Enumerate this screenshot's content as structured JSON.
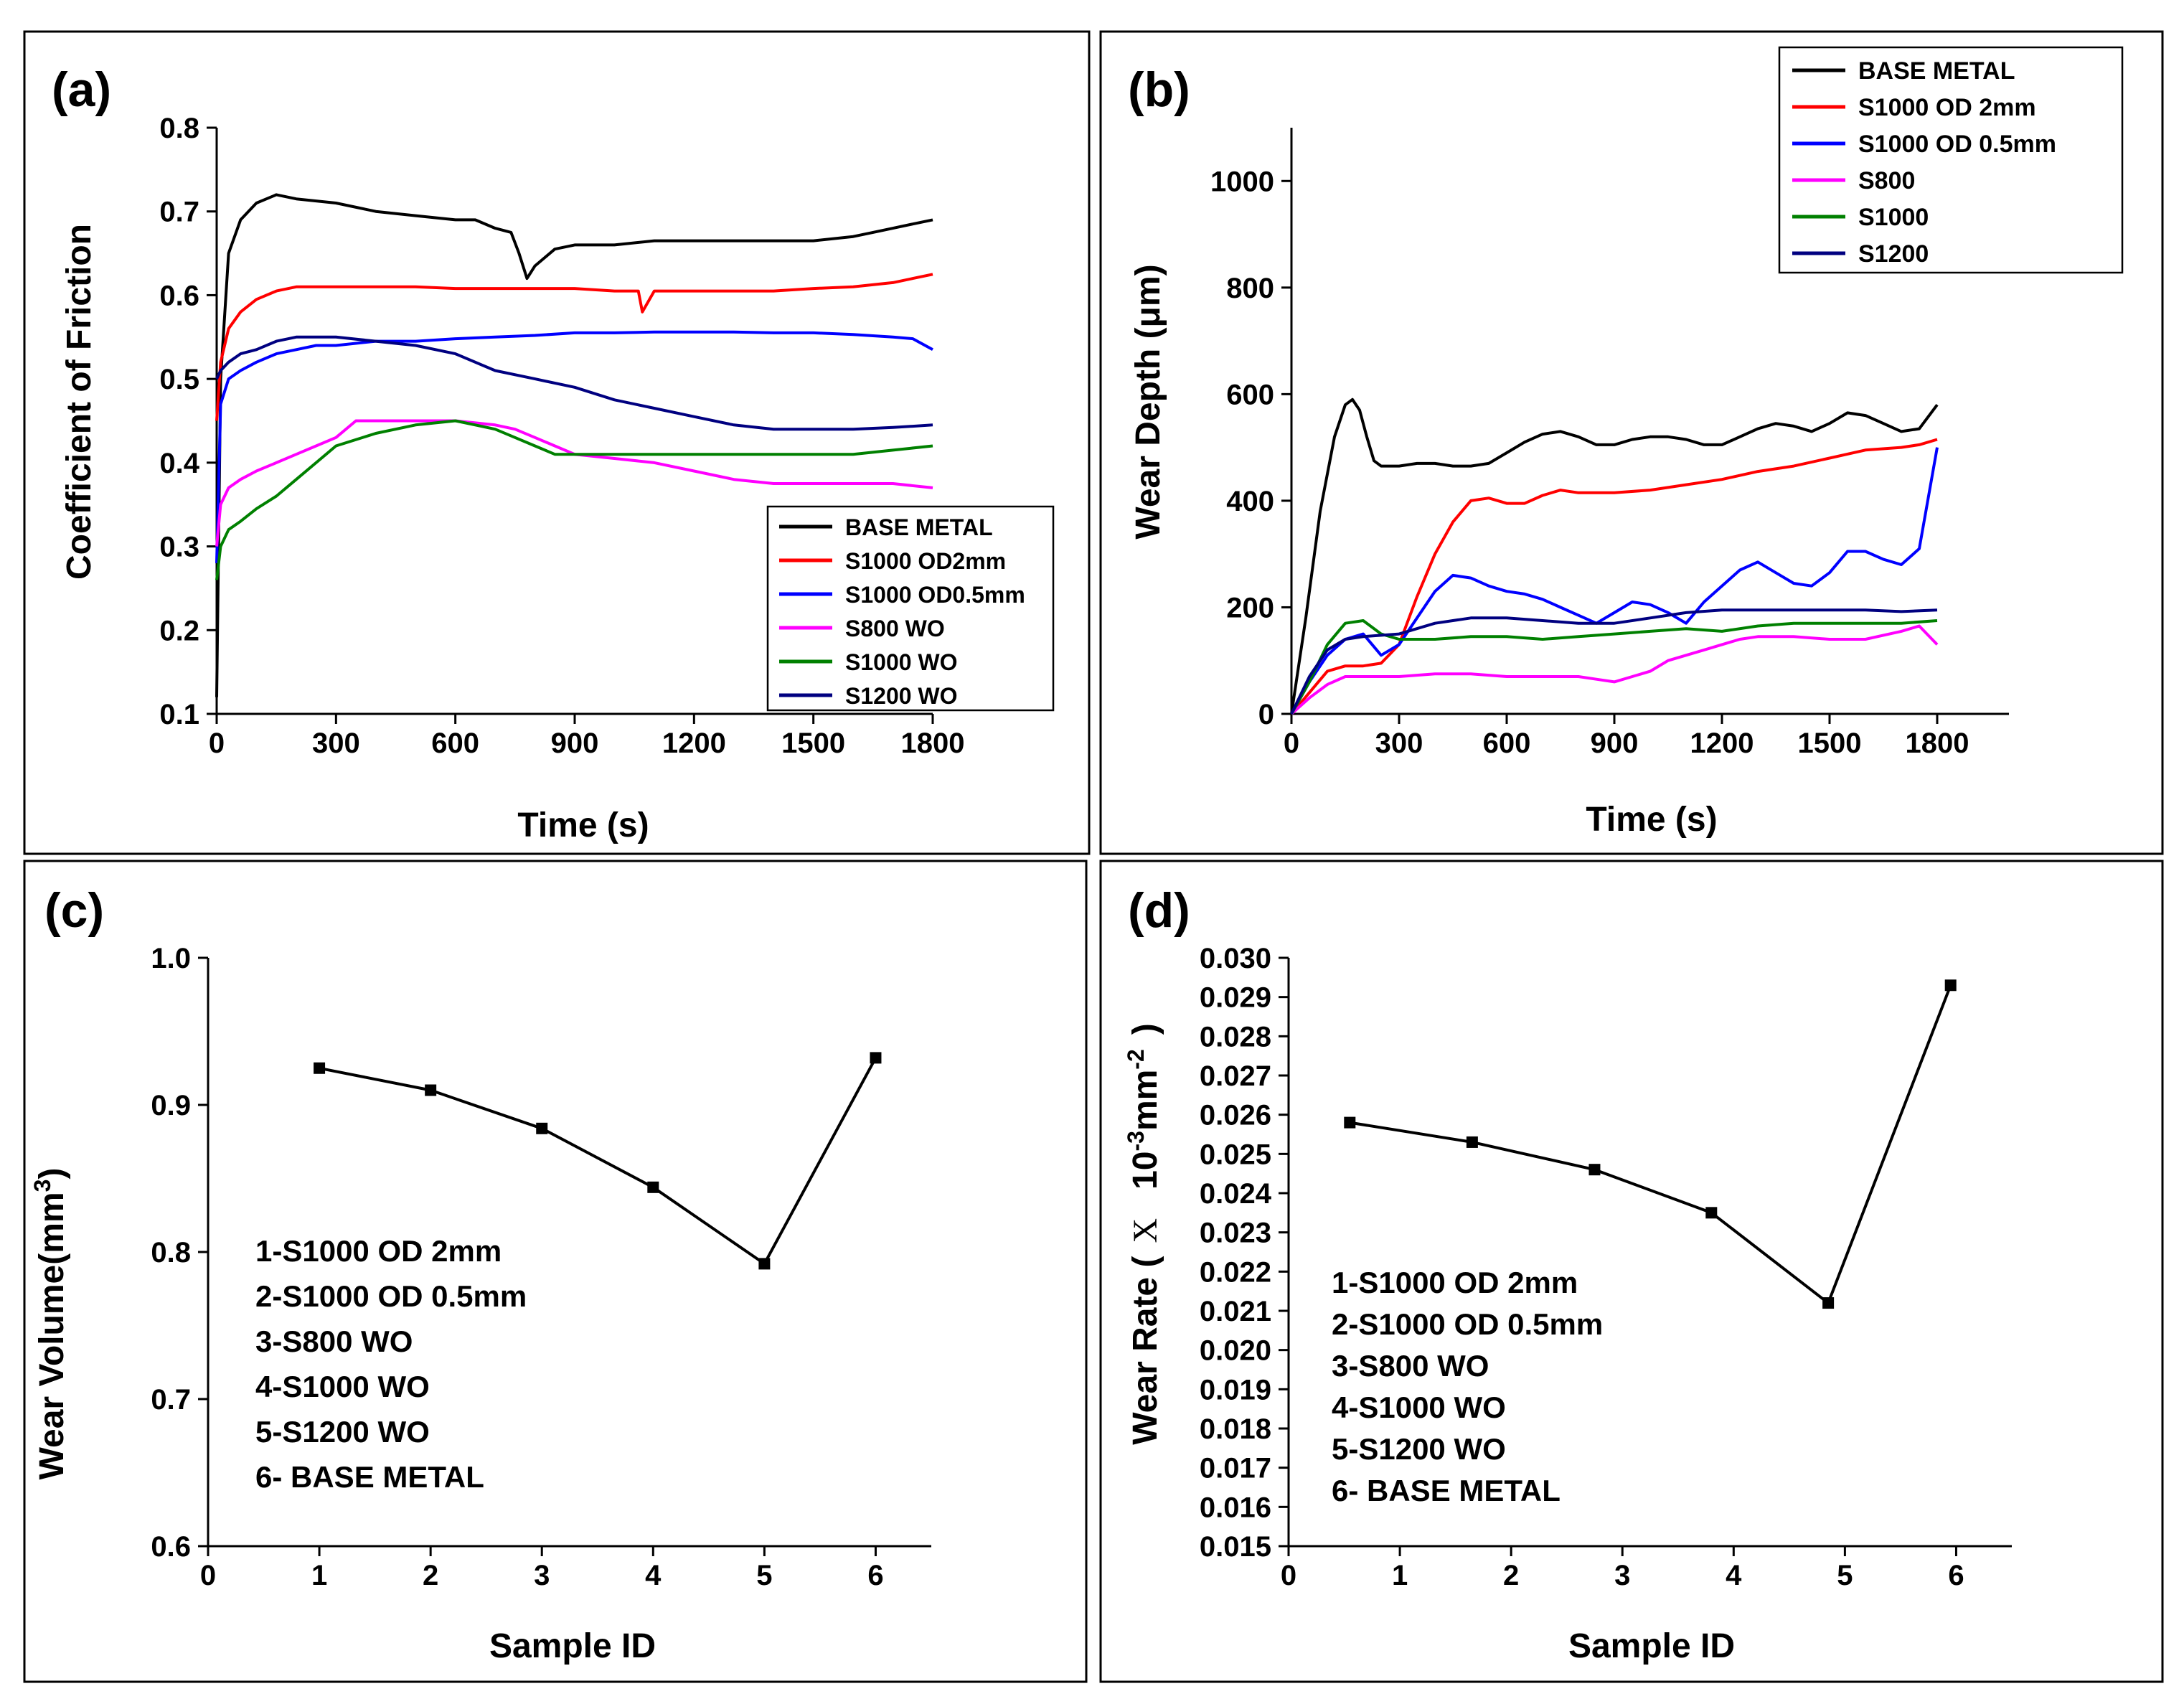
{
  "colors": {
    "black": "#000000",
    "red": "#ff0000",
    "blue": "#0000ff",
    "magenta": "#ff00ff",
    "green": "#008000",
    "navy": "#000080"
  },
  "chart_data": [
    {
      "id": "a",
      "panel_label": "(a)",
      "type": "line",
      "xlabel": "Time (s)",
      "ylabel": "Coefficient of Friction",
      "xlim": [
        0,
        1800
      ],
      "ylim": [
        0.1,
        0.8
      ],
      "xticks": [
        0,
        300,
        600,
        900,
        1200,
        1500,
        1800
      ],
      "yticks": [
        0.1,
        0.2,
        0.3,
        0.4,
        0.5,
        0.6,
        0.7,
        0.8
      ],
      "ytick_labels": [
        "0.1",
        "0.2",
        "0.3",
        "0.4",
        "0.5",
        "0.6",
        "0.7",
        "0.8"
      ],
      "legend_position": "bottom-right",
      "series": [
        {
          "name": "BASE METAL",
          "color": "#000000",
          "x": [
            0,
            10,
            30,
            60,
            100,
            150,
            200,
            300,
            400,
            500,
            600,
            650,
            700,
            740,
            760,
            780,
            800,
            850,
            900,
            1000,
            1100,
            1200,
            1300,
            1400,
            1500,
            1600,
            1650,
            1700,
            1750,
            1800
          ],
          "y": [
            0.12,
            0.5,
            0.65,
            0.69,
            0.71,
            0.72,
            0.715,
            0.71,
            0.7,
            0.695,
            0.69,
            0.69,
            0.68,
            0.675,
            0.65,
            0.62,
            0.635,
            0.655,
            0.66,
            0.66,
            0.665,
            0.665,
            0.665,
            0.665,
            0.665,
            0.67,
            0.675,
            0.68,
            0.685,
            0.69
          ]
        },
        {
          "name": "S1000 OD2mm",
          "color": "#ff0000",
          "x": [
            0,
            10,
            30,
            60,
            100,
            150,
            200,
            300,
            400,
            500,
            600,
            700,
            800,
            900,
            1000,
            1060,
            1070,
            1100,
            1200,
            1300,
            1400,
            1500,
            1600,
            1700,
            1750,
            1800
          ],
          "y": [
            0.45,
            0.52,
            0.56,
            0.58,
            0.595,
            0.605,
            0.61,
            0.61,
            0.61,
            0.61,
            0.608,
            0.608,
            0.608,
            0.608,
            0.605,
            0.605,
            0.58,
            0.605,
            0.605,
            0.605,
            0.605,
            0.608,
            0.61,
            0.615,
            0.62,
            0.625
          ]
        },
        {
          "name": "S1000 OD0.5mm",
          "color": "#0000ff",
          "x": [
            0,
            10,
            30,
            60,
            100,
            150,
            200,
            250,
            300,
            400,
            500,
            600,
            700,
            800,
            900,
            1000,
            1100,
            1200,
            1300,
            1400,
            1500,
            1600,
            1700,
            1750,
            1800
          ],
          "y": [
            0.28,
            0.47,
            0.5,
            0.51,
            0.52,
            0.53,
            0.535,
            0.54,
            0.54,
            0.545,
            0.545,
            0.548,
            0.55,
            0.552,
            0.555,
            0.555,
            0.556,
            0.556,
            0.556,
            0.555,
            0.555,
            0.553,
            0.55,
            0.548,
            0.535
          ]
        },
        {
          "name": "S800 WO",
          "color": "#ff00ff",
          "x": [
            0,
            10,
            30,
            60,
            100,
            150,
            200,
            250,
            300,
            350,
            400,
            500,
            600,
            700,
            750,
            800,
            850,
            900,
            1000,
            1100,
            1200,
            1300,
            1400,
            1500,
            1600,
            1700,
            1800
          ],
          "y": [
            0.3,
            0.35,
            0.37,
            0.38,
            0.39,
            0.4,
            0.41,
            0.42,
            0.43,
            0.45,
            0.45,
            0.45,
            0.45,
            0.445,
            0.44,
            0.43,
            0.42,
            0.41,
            0.405,
            0.4,
            0.39,
            0.38,
            0.375,
            0.375,
            0.375,
            0.375,
            0.37
          ]
        },
        {
          "name": "S1000 WO",
          "color": "#008000",
          "x": [
            0,
            10,
            30,
            60,
            100,
            150,
            200,
            250,
            300,
            400,
            500,
            600,
            650,
            700,
            750,
            800,
            850,
            900,
            1000,
            1100,
            1200,
            1300,
            1400,
            1500,
            1600,
            1700,
            1800
          ],
          "y": [
            0.26,
            0.3,
            0.32,
            0.33,
            0.345,
            0.36,
            0.38,
            0.4,
            0.42,
            0.435,
            0.445,
            0.45,
            0.445,
            0.44,
            0.43,
            0.42,
            0.41,
            0.41,
            0.41,
            0.41,
            0.41,
            0.41,
            0.41,
            0.41,
            0.41,
            0.415,
            0.42
          ]
        },
        {
          "name": "S1200 WO",
          "color": "#000080",
          "x": [
            0,
            10,
            30,
            60,
            100,
            150,
            200,
            250,
            300,
            400,
            500,
            600,
            700,
            800,
            900,
            1000,
            1100,
            1200,
            1300,
            1400,
            1500,
            1600,
            1700,
            1800
          ],
          "y": [
            0.5,
            0.51,
            0.52,
            0.53,
            0.535,
            0.545,
            0.55,
            0.55,
            0.55,
            0.545,
            0.54,
            0.53,
            0.51,
            0.5,
            0.49,
            0.475,
            0.465,
            0.455,
            0.445,
            0.44,
            0.44,
            0.44,
            0.442,
            0.445
          ]
        }
      ]
    },
    {
      "id": "b",
      "panel_label": "(b)",
      "type": "line",
      "xlabel": "Time (s)",
      "ylabel_prefix": "Wear Depth (",
      "ylabel_unit": "μm",
      "ylabel_suffix": ")",
      "xlim": [
        0,
        2000
      ],
      "ylim": [
        0,
        1100
      ],
      "xticks": [
        0,
        300,
        600,
        900,
        1200,
        1500,
        1800
      ],
      "yticks": [
        0,
        200,
        400,
        600,
        800,
        1000
      ],
      "legend_position": "top-right",
      "series": [
        {
          "name": "BASE METAL",
          "color": "#000000",
          "x": [
            0,
            40,
            80,
            120,
            150,
            170,
            190,
            210,
            230,
            250,
            300,
            350,
            400,
            450,
            500,
            550,
            600,
            650,
            700,
            750,
            800,
            850,
            900,
            950,
            1000,
            1050,
            1100,
            1150,
            1200,
            1250,
            1300,
            1350,
            1400,
            1450,
            1500,
            1550,
            1600,
            1650,
            1700,
            1750,
            1800
          ],
          "y": [
            0,
            180,
            380,
            520,
            580,
            590,
            570,
            520,
            475,
            465,
            465,
            470,
            470,
            465,
            465,
            470,
            490,
            510,
            525,
            530,
            520,
            505,
            505,
            515,
            520,
            520,
            515,
            505,
            505,
            520,
            535,
            545,
            540,
            530,
            545,
            565,
            560,
            545,
            530,
            535,
            580
          ]
        },
        {
          "name": "S1000 OD 2mm",
          "color": "#ff0000",
          "x": [
            0,
            50,
            100,
            150,
            200,
            250,
            300,
            350,
            400,
            450,
            500,
            550,
            600,
            650,
            700,
            750,
            800,
            900,
            1000,
            1100,
            1200,
            1300,
            1400,
            1500,
            1600,
            1700,
            1750,
            1800
          ],
          "y": [
            0,
            40,
            80,
            90,
            90,
            95,
            130,
            220,
            300,
            360,
            400,
            405,
            395,
            395,
            410,
            420,
            415,
            415,
            420,
            430,
            440,
            455,
            465,
            480,
            495,
            500,
            505,
            515
          ]
        },
        {
          "name": "S1000 OD 0.5mm",
          "color": "#0000ff",
          "x": [
            0,
            50,
            100,
            150,
            200,
            250,
            300,
            350,
            400,
            450,
            500,
            550,
            600,
            650,
            700,
            750,
            800,
            850,
            900,
            950,
            1000,
            1050,
            1100,
            1150,
            1200,
            1250,
            1300,
            1350,
            1400,
            1450,
            1500,
            1550,
            1600,
            1650,
            1700,
            1750,
            1800
          ],
          "y": [
            0,
            60,
            110,
            140,
            150,
            110,
            130,
            180,
            230,
            260,
            255,
            240,
            230,
            225,
            215,
            200,
            185,
            170,
            190,
            210,
            205,
            190,
            170,
            210,
            240,
            270,
            285,
            265,
            245,
            240,
            265,
            305,
            305,
            290,
            280,
            310,
            500
          ]
        },
        {
          "name": "S800",
          "color": "#ff00ff",
          "x": [
            0,
            50,
            100,
            150,
            200,
            300,
            400,
            500,
            600,
            700,
            800,
            850,
            900,
            950,
            1000,
            1050,
            1100,
            1150,
            1200,
            1250,
            1300,
            1400,
            1500,
            1600,
            1700,
            1750,
            1800
          ],
          "y": [
            0,
            30,
            55,
            70,
            70,
            70,
            75,
            75,
            70,
            70,
            70,
            65,
            60,
            70,
            80,
            100,
            110,
            120,
            130,
            140,
            145,
            145,
            140,
            140,
            155,
            165,
            130
          ]
        },
        {
          "name": "S1000",
          "color": "#008000",
          "x": [
            0,
            50,
            100,
            150,
            200,
            250,
            300,
            400,
            500,
            600,
            700,
            800,
            900,
            1000,
            1100,
            1200,
            1300,
            1400,
            1500,
            1600,
            1700,
            1800
          ],
          "y": [
            0,
            60,
            130,
            170,
            175,
            150,
            140,
            140,
            145,
            145,
            140,
            145,
            150,
            155,
            160,
            155,
            165,
            170,
            170,
            170,
            170,
            175
          ]
        },
        {
          "name": "S1200",
          "color": "#000080",
          "x": [
            0,
            50,
            100,
            150,
            200,
            300,
            400,
            500,
            600,
            700,
            800,
            900,
            1000,
            1100,
            1200,
            1300,
            1400,
            1500,
            1600,
            1700,
            1800
          ],
          "y": [
            0,
            70,
            120,
            140,
            145,
            150,
            170,
            180,
            180,
            175,
            170,
            170,
            180,
            190,
            195,
            195,
            195,
            195,
            195,
            192,
            195
          ]
        }
      ]
    },
    {
      "id": "c",
      "panel_label": "(c)",
      "type": "line",
      "xlabel": "Sample ID",
      "ylabel_prefix": "Wear Volume(mm",
      "ylabel_sup": "3",
      "ylabel_suffix": ")",
      "xlim": [
        0,
        6.5
      ],
      "ylim": [
        0.6,
        1.0
      ],
      "xticks": [
        0,
        1,
        2,
        3,
        4,
        5,
        6
      ],
      "yticks": [
        0.6,
        0.7,
        0.8,
        0.9,
        1.0
      ],
      "ytick_labels": [
        "0.6",
        "0.7",
        "0.8",
        "0.9",
        "1.0"
      ],
      "x": [
        1,
        2,
        3,
        4,
        5,
        6
      ],
      "y": [
        0.925,
        0.91,
        0.884,
        0.844,
        0.792,
        0.932
      ],
      "notes": [
        "1-S1000 OD 2mm",
        "2-S1000 OD 0.5mm",
        "3-S800 WO",
        "4-S1000 WO",
        "5-S1200 WO",
        "6- BASE METAL"
      ]
    },
    {
      "id": "d",
      "panel_label": "(d)",
      "type": "line",
      "xlabel": "Sample ID",
      "ylabel_prefix": "Wear Rate (",
      "ylabel_x": "X",
      "ylabel_mid": "10",
      "ylabel_sup1": "-3",
      "ylabel_mm": "mm",
      "ylabel_sup2": "-2",
      "ylabel_suffix": ")",
      "xlim": [
        0,
        6.5
      ],
      "ylim": [
        0.015,
        0.03
      ],
      "xticks": [
        0,
        1,
        2,
        3,
        4,
        5,
        6
      ],
      "yticks": [
        0.015,
        0.016,
        0.017,
        0.018,
        0.019,
        0.02,
        0.021,
        0.022,
        0.023,
        0.024,
        0.025,
        0.026,
        0.027,
        0.028,
        0.029,
        0.03
      ],
      "ytick_labels": [
        "0.015",
        "0.016",
        "0.017",
        "0.018",
        "0.019",
        "0.020",
        "0.021",
        "0.022",
        "0.023",
        "0.024",
        "0.025",
        "0.026",
        "0.027",
        "0.028",
        "0.029",
        "0.030"
      ],
      "x": [
        0.55,
        1.65,
        2.75,
        3.8,
        4.85,
        5.95
      ],
      "y": [
        0.0258,
        0.0253,
        0.0246,
        0.0235,
        0.0212,
        0.0293
      ],
      "notes": [
        "1-S1000 OD 2mm",
        "2-S1000 OD 0.5mm",
        "3-S800 WO",
        "4-S1000 WO",
        "5-S1200 WO",
        "6- BASE METAL"
      ]
    }
  ]
}
